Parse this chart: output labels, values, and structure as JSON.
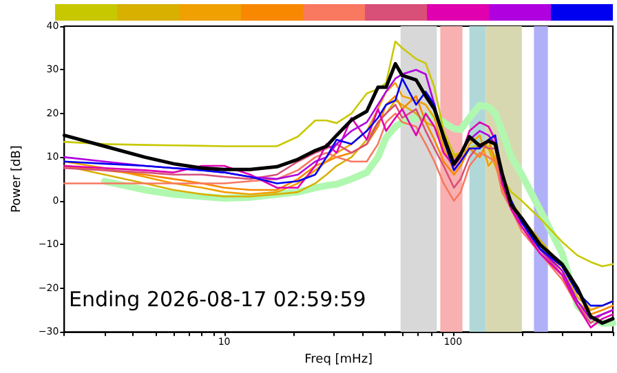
{
  "chart_data": {
    "type": "line",
    "xlabel": "Freq [mHz]",
    "ylabel": "Power [dB]",
    "annotations": [
      "Ending 2026-08-17 02:59:59"
    ],
    "log": "x",
    "xlim": [
      2,
      500
    ],
    "ylim": [
      -30,
      40
    ],
    "xticks": [
      {
        "value": 2,
        "label": null
      },
      {
        "value": 3,
        "label": null
      },
      {
        "value": 4,
        "label": null
      },
      {
        "value": 5,
        "label": null
      },
      {
        "value": 6,
        "label": null
      },
      {
        "value": 7,
        "label": null
      },
      {
        "value": 8,
        "label": null
      },
      {
        "value": 9,
        "label": null
      },
      10,
      {
        "value": 20,
        "label": null
      },
      {
        "value": 30,
        "label": null
      },
      {
        "value": 40,
        "label": null
      },
      {
        "value": 50,
        "label": null
      },
      {
        "value": 60,
        "label": null
      },
      {
        "value": 70,
        "label": null
      },
      {
        "value": 80,
        "label": null
      },
      {
        "value": 90,
        "label": null
      },
      100,
      {
        "value": 200,
        "label": null
      },
      {
        "value": 300,
        "label": null
      },
      {
        "value": 400,
        "label": null
      },
      {
        "value": 500,
        "label": null
      }
    ],
    "yticks": [
      {
        "value": -30,
        "label": "−30"
      },
      {
        "value": -20,
        "label": "−20"
      },
      {
        "value": -10,
        "label": "−10"
      },
      0,
      10,
      20,
      30,
      40
    ],
    "grid": false,
    "marker": "none",
    "line_style": "solid",
    "x": [
      2,
      3,
      4.5,
      6,
      8,
      10,
      13,
      17,
      21,
      25,
      28,
      31,
      36,
      42,
      47,
      51,
      56,
      60,
      69,
      76,
      83,
      91,
      101,
      108,
      118,
      131,
      143,
      153,
      164,
      180,
      200,
      240,
      300,
      350,
      400,
      450,
      500
    ],
    "bands": [
      {
        "axis": "x",
        "from": 59,
        "to": 85,
        "color": "#d8d8d8"
      },
      {
        "axis": "x",
        "from": 88,
        "to": 110,
        "color": "#f8b0b0"
      },
      {
        "axis": "x",
        "from": 118,
        "to": 139,
        "color": "#b0d8d8"
      },
      {
        "axis": "x",
        "from": 139,
        "to": 200,
        "color": "#d8d8b0"
      },
      {
        "axis": "x",
        "from": 226,
        "to": 260,
        "color": "#b0b0f8"
      }
    ],
    "series": [
      {
        "color": "#b0f8b0",
        "values": [
          null,
          4.5,
          2.5,
          1.5,
          1,
          0.6,
          0.8,
          1.5,
          2,
          3,
          3.5,
          3.8,
          5,
          6.5,
          10,
          14.5,
          17,
          18,
          19,
          19.5,
          19.4,
          18,
          16.5,
          16.3,
          19,
          21.9,
          21.5,
          20,
          16,
          10,
          6,
          -2,
          -12,
          -24,
          -27,
          -28,
          -28
        ]
      },
      {
        "color": "#c8c800",
        "values": [
          13.5,
          13,
          12.8,
          12.7,
          12.6,
          12.5,
          12.5,
          12.5,
          14.7,
          18.4,
          18.4,
          17.8,
          20,
          24.6,
          25.6,
          27,
          36.5,
          35,
          32.5,
          31.5,
          26,
          16,
          10.6,
          11,
          12,
          13,
          12.5,
          10,
          5.3,
          2,
          0,
          -4,
          -9.4,
          -12.5,
          -14,
          -15,
          -14.5
        ]
      },
      {
        "color": "#d8b000",
        "values": [
          8,
          6,
          4,
          2.5,
          1.5,
          1,
          1,
          1.5,
          2,
          4,
          6,
          8,
          10,
          14,
          18,
          20,
          23,
          22,
          20,
          18,
          17,
          13,
          10,
          11,
          14,
          13,
          12,
          8,
          4,
          0,
          -4,
          -9,
          -15,
          -21,
          -25,
          -24,
          -23
        ]
      },
      {
        "color": "#f0a000",
        "values": [
          9,
          7.5,
          5.5,
          4,
          3,
          2,
          1.5,
          2,
          4,
          7,
          9,
          11,
          13,
          16,
          21,
          25,
          27,
          24,
          23,
          22,
          19,
          12,
          7,
          9,
          13,
          15,
          8,
          10,
          2,
          -1,
          -5,
          -10,
          -16,
          -22,
          -25,
          -24,
          -23
        ]
      },
      {
        "color": "#f88800",
        "values": [
          8,
          7,
          6,
          5,
          4,
          3,
          2.5,
          2.5,
          5,
          8,
          9,
          10,
          11,
          13,
          17,
          22,
          24,
          21,
          24,
          18,
          14,
          9,
          6,
          8,
          12,
          10,
          14,
          9,
          3,
          -1,
          -6,
          -11,
          -17,
          -23,
          -26,
          -25,
          -24
        ]
      },
      {
        "color": "#f87860",
        "values": [
          4,
          4,
          4,
          4,
          4,
          4,
          4.5,
          5,
          7,
          10,
          11,
          10,
          9,
          9,
          13,
          18,
          20,
          18,
          17,
          13,
          9,
          4,
          0,
          2,
          8,
          11,
          10,
          9,
          2,
          -2,
          -7,
          -12,
          -18,
          -24,
          -27,
          -26,
          -25
        ]
      },
      {
        "color": "#d85078",
        "values": [
          7.5,
          7,
          6.5,
          6,
          6,
          5.5,
          5,
          6,
          9,
          11,
          12,
          13,
          11,
          13,
          18,
          20,
          22,
          19,
          21,
          16,
          12,
          8,
          3,
          5,
          10,
          13,
          12,
          12,
          4,
          -1,
          -6,
          -11,
          -17,
          -24,
          -28,
          -26,
          -25
        ]
      },
      {
        "color": "#e000b0",
        "values": [
          8,
          7.5,
          7,
          6.5,
          8,
          8,
          6,
          3,
          3,
          8,
          13,
          11,
          19,
          14,
          21,
          16,
          19,
          21,
          15,
          20,
          17,
          11,
          8,
          10,
          16,
          18,
          17,
          14,
          4,
          -2,
          -6,
          -12,
          -17,
          -24,
          -29,
          -27,
          -26
        ]
      },
      {
        "color": "#b000e0",
        "values": [
          10,
          9,
          8,
          7.5,
          7,
          6.5,
          5.5,
          5,
          6,
          9,
          10,
          13,
          16,
          18,
          22,
          25,
          28,
          29,
          30,
          29,
          22,
          14,
          9,
          11,
          14,
          16,
          15,
          13,
          5,
          -1,
          -5,
          -11,
          -16,
          -23,
          -27,
          -26,
          -25
        ]
      },
      {
        "color": "#0000f0",
        "values": [
          9,
          8.5,
          8,
          7.5,
          7,
          6.5,
          5.5,
          4,
          4.5,
          6,
          10,
          14,
          13,
          16,
          19,
          22,
          23,
          28,
          22,
          25,
          22,
          14,
          7,
          9,
          12,
          12,
          14,
          15,
          6,
          0,
          -5,
          -11,
          -15,
          -21,
          -24,
          -24,
          -23
        ]
      },
      {
        "color": "#000000",
        "values": [
          15,
          12.5,
          10,
          8.5,
          7.5,
          7.2,
          7.2,
          7.8,
          9.5,
          11.5,
          12.5,
          15,
          18.5,
          20.5,
          26,
          26,
          31.4,
          28.7,
          27.7,
          24,
          21,
          14.7,
          8.4,
          10.6,
          14.7,
          12.6,
          13.7,
          13,
          6.3,
          -1,
          -4,
          -10,
          -14.5,
          -20,
          -26.5,
          -28,
          -27
        ]
      }
    ]
  }
}
